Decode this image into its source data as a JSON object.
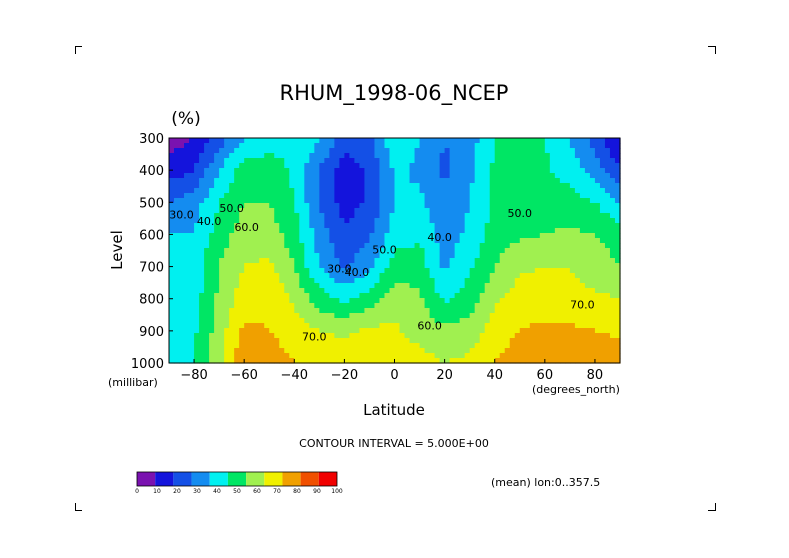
{
  "chart_data": {
    "type": "heatmap",
    "title": "RHUM_1998-06_NCEP",
    "units": "(%)",
    "xlabel": "Latitude",
    "ylabel": "Level",
    "x_unit_label": "(degrees_north)",
    "y_unit_label": "(millibar)",
    "xlim": [
      -90,
      90
    ],
    "ylim": [
      1000,
      300
    ],
    "x_ticks": [
      -80,
      -60,
      -40,
      -20,
      0,
      20,
      40,
      60,
      80
    ],
    "y_ticks": [
      300,
      400,
      500,
      600,
      700,
      800,
      900,
      1000
    ],
    "contour_interval_text": "CONTOUR INTERVAL = 5.000E+00",
    "mean_text": "(mean) lon:0..357.5",
    "colorbar": {
      "ticks": [
        0,
        10,
        20,
        30,
        40,
        50,
        60,
        70,
        80,
        90,
        100
      ],
      "colors": [
        "#7a12b0",
        "#1414dc",
        "#1450e6",
        "#148cf0",
        "#00f0f0",
        "#00e664",
        "#a0f050",
        "#f0f000",
        "#f0a000",
        "#f05000",
        "#f00000"
      ]
    },
    "contour_labels": [
      {
        "text": "30.0",
        "lat": -85,
        "level": 550
      },
      {
        "text": "40.0",
        "lat": -74,
        "level": 570
      },
      {
        "text": "50.0",
        "lat": -65,
        "level": 530
      },
      {
        "text": "60.0",
        "lat": -59,
        "level": 590
      },
      {
        "text": "70.0",
        "lat": -32,
        "level": 930
      },
      {
        "text": "30.0",
        "lat": -22,
        "level": 718
      },
      {
        "text": "40.0",
        "lat": -15,
        "level": 730
      },
      {
        "text": "50.0",
        "lat": -4,
        "level": 660
      },
      {
        "text": "40.0",
        "lat": 18,
        "level": 620
      },
      {
        "text": "60.0",
        "lat": 14,
        "level": 895
      },
      {
        "text": "50.0",
        "lat": 50,
        "level": 545
      },
      {
        "text": "70.0",
        "lat": 75,
        "level": 830
      }
    ],
    "lat_grid": [
      -90,
      -80,
      -70,
      -60,
      -50,
      -40,
      -30,
      -20,
      -10,
      0,
      10,
      20,
      30,
      40,
      50,
      60,
      70,
      80,
      90
    ],
    "level_grid": [
      300,
      400,
      500,
      600,
      700,
      800,
      900,
      1000
    ],
    "values": [
      [
        5,
        10,
        25,
        40,
        45,
        50,
        40,
        25,
        25,
        50,
        40,
        30,
        35,
        50,
        50,
        50,
        40,
        25,
        10
      ],
      [
        15,
        20,
        40,
        55,
        55,
        48,
        30,
        15,
        22,
        42,
        38,
        28,
        38,
        52,
        52,
        52,
        45,
        35,
        20
      ],
      [
        30,
        35,
        50,
        60,
        60,
        50,
        30,
        15,
        22,
        40,
        42,
        32,
        40,
        52,
        55,
        55,
        55,
        50,
        40
      ],
      [
        40,
        40,
        55,
        65,
        65,
        55,
        35,
        22,
        28,
        45,
        48,
        35,
        42,
        55,
        58,
        60,
        62,
        60,
        55
      ],
      [
        45,
        45,
        60,
        70,
        72,
        60,
        40,
        28,
        38,
        55,
        55,
        38,
        48,
        60,
        68,
        70,
        70,
        65,
        60
      ],
      [
        40,
        45,
        62,
        75,
        78,
        68,
        55,
        48,
        55,
        65,
        62,
        48,
        55,
        68,
        75,
        75,
        73,
        72,
        70
      ],
      [
        45,
        48,
        65,
        82,
        80,
        75,
        70,
        68,
        72,
        72,
        65,
        62,
        65,
        75,
        80,
        82,
        82,
        80,
        78
      ],
      [
        50,
        50,
        68,
        88,
        85,
        80,
        78,
        76,
        78,
        78,
        75,
        70,
        72,
        80,
        85,
        88,
        90,
        88,
        85
      ]
    ]
  }
}
